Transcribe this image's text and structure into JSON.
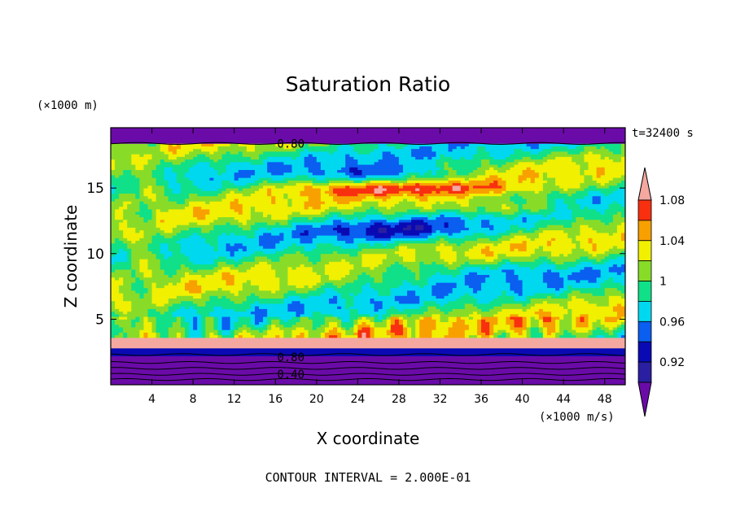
{
  "chart_data": {
    "type": "heatmap",
    "title": "Saturation Ratio",
    "xlabel": "X coordinate",
    "ylabel": "Z coordinate",
    "x_units": "(×1000 m/s)",
    "y_units": "(×1000 m)",
    "time_label": "t=32400 s",
    "footer": "CONTOUR INTERVAL = 2.000E-01",
    "xlim": [
      0,
      50
    ],
    "ylim": [
      0,
      19.6
    ],
    "x_ticks": [
      4,
      8,
      12,
      16,
      20,
      24,
      28,
      32,
      36,
      40,
      44,
      48
    ],
    "y_ticks": [
      5,
      10,
      15
    ],
    "contour_labels": [
      {
        "text": "0.80",
        "x": 17.5,
        "z": 18.4
      },
      {
        "text": "0.80",
        "x": 17.5,
        "z": 2.1
      },
      {
        "text": "0.40",
        "x": 17.5,
        "z": 0.8
      }
    ],
    "colorbar": {
      "levels": [
        0.9,
        0.92,
        0.94,
        0.96,
        0.98,
        1.0,
        1.02,
        1.04,
        1.06,
        1.08,
        1.1
      ],
      "colors": [
        "#6a0ba8",
        "#2a1fa0",
        "#0a0ab4",
        "#0a5ef0",
        "#00d8f0",
        "#10e088",
        "#88dc28",
        "#f0f000",
        "#f8a000",
        "#f83010",
        "#f4a8a0"
      ],
      "tick_labels": [
        "0.92",
        "0.96",
        "1",
        "1.04",
        "1.08"
      ],
      "tick_values": [
        0.92,
        0.96,
        1.0,
        1.04,
        1.08
      ],
      "extends": "both"
    },
    "layers": [
      {
        "z0": 0,
        "z1": 2.3,
        "value": "<0.90"
      },
      {
        "z0": 2.3,
        "z1": 2.8,
        "value": "0.92-0.96"
      },
      {
        "z0": 2.8,
        "z1": 3.6,
        "value": ">1.10"
      },
      {
        "z0": 3.6,
        "z1": 5.0,
        "value": "0.98-1.06 mixed"
      },
      {
        "z0": 5.0,
        "z1": 18.4,
        "value": "0.94-1.08 mixed"
      },
      {
        "z0": 18.4,
        "z1": 19.6,
        "value": "<0.90"
      }
    ]
  }
}
